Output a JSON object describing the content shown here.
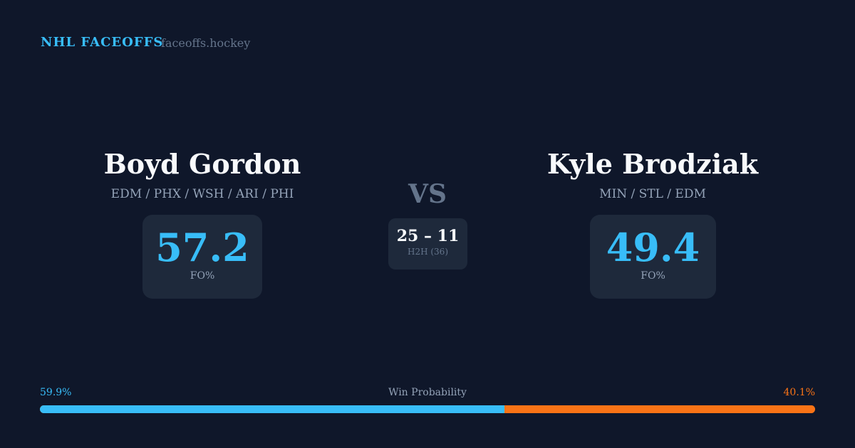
{
  "header": {
    "brand": "NHL FACEOFFS",
    "site": "faceoffs.hockey"
  },
  "player1": {
    "name": "Boyd Gordon",
    "teams": "EDM / PHX / WSH / ARI / PHI",
    "fo_pct": "57.2",
    "fo_label": "FO%"
  },
  "player2": {
    "name": "Kyle Brodziak",
    "teams": "MIN / STL / EDM",
    "fo_pct": "49.4",
    "fo_label": "FO%"
  },
  "vs": "VS",
  "h2h": {
    "score": "25 – 11",
    "label": "H2H (36)"
  },
  "win_probability": {
    "label": "Win Probability",
    "p1": "59.9%",
    "p2": "40.1%",
    "p1_value": 59.9,
    "p2_value": 40.1
  },
  "colors": {
    "accent": "#38bdf8",
    "opponent": "#f97316",
    "background": "#0f172a",
    "card": "#1e293b"
  }
}
